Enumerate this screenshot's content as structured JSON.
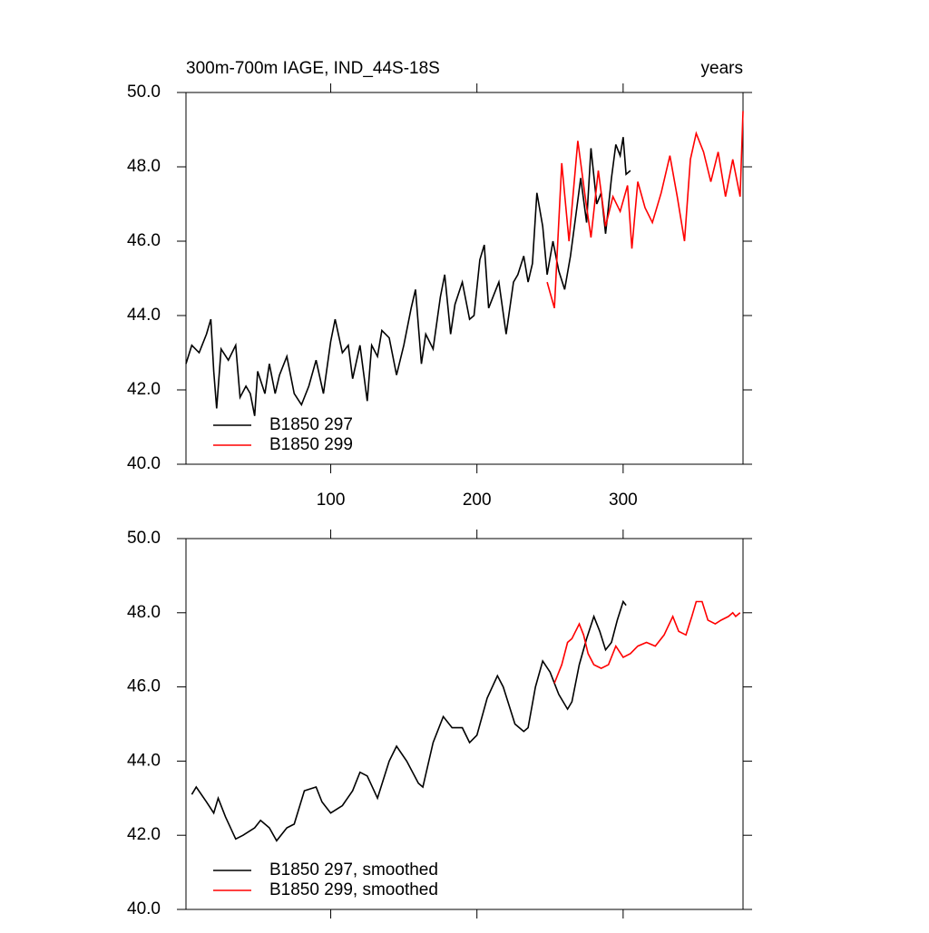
{
  "chart_data": [
    {
      "type": "line",
      "title": "300m-700m IAGE, IND_44S-18S",
      "units_label": "years",
      "xlim": [
        1,
        382
      ],
      "ylim": [
        40,
        50
      ],
      "xticks": [
        100,
        200,
        300
      ],
      "yticks": [
        {
          "value": 40,
          "label": "40.0"
        },
        {
          "value": 42,
          "label": "42.0"
        },
        {
          "value": 44,
          "label": "44.0"
        },
        {
          "value": 46,
          "label": "46.0"
        },
        {
          "value": 48,
          "label": "48.0"
        },
        {
          "value": 50,
          "label": "50.0"
        }
      ],
      "show_xtick_labels": true,
      "series": [
        {
          "name": "B1850 297",
          "color": "#000000",
          "x": [
            1,
            5,
            10,
            15,
            18,
            20,
            22,
            25,
            30,
            35,
            38,
            42,
            45,
            48,
            50,
            55,
            58,
            62,
            65,
            70,
            75,
            80,
            85,
            90,
            95,
            100,
            103,
            108,
            112,
            115,
            120,
            125,
            128,
            132,
            135,
            140,
            145,
            150,
            155,
            158,
            162,
            165,
            170,
            175,
            178,
            182,
            185,
            190,
            195,
            198,
            202,
            205,
            208,
            212,
            215,
            220,
            225,
            228,
            232,
            235,
            238,
            241,
            245,
            248,
            252,
            256,
            260,
            264,
            268,
            271,
            275,
            278,
            282,
            285,
            288,
            292,
            295,
            298,
            300,
            302,
            305
          ],
          "values": [
            42.7,
            43.2,
            43.0,
            43.5,
            43.9,
            42.5,
            41.5,
            43.1,
            42.8,
            43.2,
            41.8,
            42.1,
            41.9,
            41.3,
            42.5,
            41.9,
            42.7,
            41.9,
            42.4,
            42.9,
            41.9,
            41.6,
            42.1,
            42.8,
            41.9,
            43.3,
            43.9,
            43.0,
            43.2,
            42.3,
            43.2,
            41.7,
            43.2,
            42.9,
            43.6,
            43.4,
            42.4,
            43.2,
            44.2,
            44.7,
            42.7,
            43.5,
            43.1,
            44.5,
            45.1,
            43.5,
            44.3,
            44.9,
            43.9,
            44.0,
            45.5,
            45.9,
            44.2,
            44.6,
            44.9,
            43.5,
            44.9,
            45.1,
            45.6,
            44.9,
            45.4,
            47.3,
            46.4,
            45.1,
            46.0,
            45.2,
            44.7,
            45.6,
            46.8,
            47.7,
            46.5,
            48.5,
            47.0,
            47.3,
            46.2,
            47.7,
            48.6,
            48.3,
            48.8,
            47.8,
            47.9
          ]
        },
        {
          "name": "B1850 299",
          "color": "#ff0000",
          "x": [
            248,
            253,
            258,
            263,
            269,
            274,
            278,
            283,
            288,
            293,
            298,
            303,
            306,
            310,
            315,
            320,
            326,
            332,
            337,
            342,
            346,
            350,
            355,
            360,
            365,
            370,
            375,
            380,
            382
          ],
          "values": [
            44.9,
            44.2,
            48.1,
            46.0,
            48.7,
            47.2,
            46.1,
            47.9,
            46.4,
            47.2,
            46.8,
            47.5,
            45.8,
            47.6,
            46.9,
            46.5,
            47.3,
            48.3,
            47.2,
            46.0,
            48.2,
            48.9,
            48.4,
            47.6,
            48.4,
            47.2,
            48.2,
            47.2,
            49.5
          ]
        }
      ]
    },
    {
      "type": "line",
      "xlim": [
        1,
        382
      ],
      "ylim": [
        40,
        50
      ],
      "xticks": [
        100,
        200,
        300
      ],
      "yticks": [
        {
          "value": 40,
          "label": "40.0"
        },
        {
          "value": 42,
          "label": "42.0"
        },
        {
          "value": 44,
          "label": "44.0"
        },
        {
          "value": 46,
          "label": "46.0"
        },
        {
          "value": 48,
          "label": "48.0"
        },
        {
          "value": 50,
          "label": "50.0"
        }
      ],
      "show_xtick_labels": false,
      "series": [
        {
          "name": "B1850 297, smoothed",
          "color": "#000000",
          "x": [
            5,
            8,
            15,
            20,
            23,
            28,
            35,
            40,
            48,
            52,
            58,
            63,
            70,
            75,
            82,
            90,
            94,
            100,
            108,
            115,
            120,
            125,
            132,
            140,
            145,
            152,
            160,
            163,
            170,
            177,
            183,
            190,
            195,
            200,
            207,
            214,
            218,
            226,
            232,
            235,
            240,
            245,
            250,
            256,
            262,
            265,
            270,
            275,
            280,
            284,
            288,
            292,
            296,
            300,
            302
          ],
          "values": [
            43.1,
            43.3,
            42.9,
            42.6,
            43.0,
            42.5,
            41.9,
            42.0,
            42.2,
            42.4,
            42.2,
            41.85,
            42.2,
            42.3,
            43.2,
            43.3,
            42.9,
            42.6,
            42.8,
            43.2,
            43.7,
            43.6,
            43.0,
            44.0,
            44.4,
            44.0,
            43.4,
            43.3,
            44.5,
            45.2,
            44.9,
            44.9,
            44.5,
            44.7,
            45.7,
            46.3,
            46.0,
            45.0,
            44.8,
            44.9,
            46.0,
            46.7,
            46.4,
            45.8,
            45.4,
            45.6,
            46.6,
            47.3,
            47.9,
            47.5,
            47.0,
            47.2,
            47.8,
            48.3,
            48.2
          ]
        },
        {
          "name": "B1850 299, smoothed",
          "color": "#ff0000",
          "x": [
            253,
            258,
            262,
            265,
            270,
            273,
            276,
            280,
            285,
            290,
            295,
            300,
            305,
            310,
            316,
            322,
            328,
            334,
            338,
            343,
            347,
            350,
            354,
            358,
            363,
            367,
            372,
            375,
            377,
            380
          ],
          "values": [
            46.1,
            46.6,
            47.2,
            47.3,
            47.7,
            47.4,
            46.9,
            46.6,
            46.5,
            46.6,
            47.1,
            46.8,
            46.9,
            47.1,
            47.2,
            47.1,
            47.4,
            47.9,
            47.5,
            47.4,
            47.9,
            48.3,
            48.3,
            47.8,
            47.7,
            47.8,
            47.9,
            48.0,
            47.9,
            48.0
          ]
        }
      ]
    }
  ]
}
